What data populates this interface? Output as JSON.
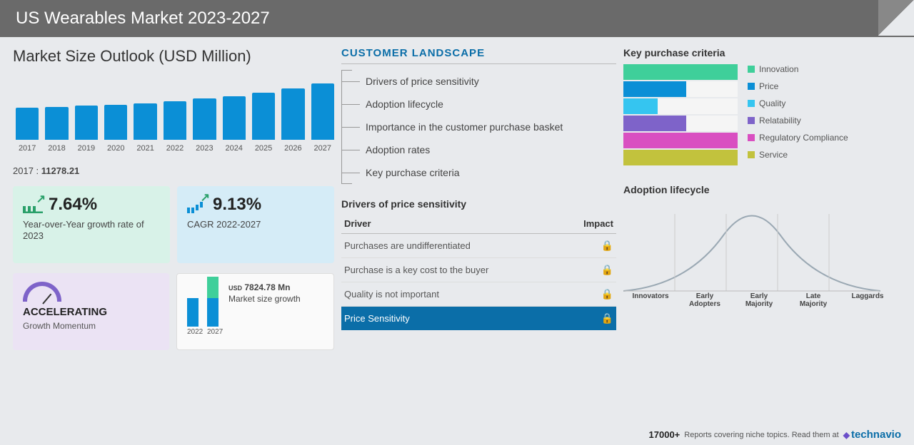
{
  "header": {
    "title": "US Wearables Market 2023-2027"
  },
  "left": {
    "market_title": "Market Size Outlook (USD Million)",
    "bar_chart": {
      "years": [
        "2017",
        "2018",
        "2019",
        "2020",
        "2021",
        "2022",
        "2023",
        "2024",
        "2025",
        "2026",
        "2027"
      ],
      "heights_pct": [
        50,
        51,
        53,
        55,
        57,
        60,
        64,
        68,
        73,
        80,
        88
      ],
      "bar_color": "#0b8fd6"
    },
    "base_year": "2017 :",
    "base_value": "11278.21",
    "kpi_yoy": {
      "value": "7.64%",
      "label": "Year-over-Year growth rate of 2023",
      "bg": "#d8f2e8"
    },
    "kpi_cagr": {
      "value": "9.13%",
      "label": "CAGR 2022-2027",
      "bg": "#d5ecf7"
    },
    "kpi_acc": {
      "title": "ACCELERATING",
      "sub": "Growth Momentum",
      "bg": "#ebe3f4"
    },
    "kpi_msg": {
      "years": [
        "2022",
        "2027"
      ],
      "usd_lbl": "USD",
      "value": "7824.78 Mn",
      "text": "Market size growth",
      "bar1_color": "#0b8fd6",
      "bar2a_color": "#0b8fd6",
      "bar2b_color": "#3fcf9a"
    }
  },
  "mid": {
    "title": "CUSTOMER  LANDSCAPE",
    "bracket_items": [
      "Drivers of price sensitivity",
      "Adoption lifecycle",
      "Importance in the customer purchase basket",
      "Adoption rates",
      "Key purchase criteria"
    ],
    "drivers_title": "Drivers of price sensitivity",
    "drivers_head": [
      "Driver",
      "Impact"
    ],
    "drivers": [
      {
        "label": "Purchases are undifferentiated",
        "hl": false
      },
      {
        "label": "Purchase is a key cost to the buyer",
        "hl": false
      },
      {
        "label": "Quality is not important",
        "hl": false
      },
      {
        "label": "Price Sensitivity",
        "hl": true
      }
    ]
  },
  "right": {
    "kpc_title": "Key purchase criteria",
    "kpc": [
      {
        "label": "Innovation",
        "pct": 100,
        "color": "#3fcf9a"
      },
      {
        "label": "Price",
        "pct": 55,
        "color": "#0b8fd6"
      },
      {
        "label": "Quality",
        "pct": 30,
        "color": "#35c5f0"
      },
      {
        "label": "Relatability",
        "pct": 55,
        "color": "#7e63c9"
      },
      {
        "label": "Regulatory Compliance",
        "pct": 100,
        "color": "#d94fc1"
      },
      {
        "label": "Service",
        "pct": 100,
        "color": "#c2c23d"
      }
    ],
    "adopt_title": "Adoption lifecycle",
    "adopt_labels": [
      "Innovators",
      "Early Adopters",
      "Early Majority",
      "Late Majority",
      "Laggards"
    ],
    "bell_color": "#9aa8b3"
  },
  "footer": {
    "count": "17000+",
    "text": "Reports covering niche topics. Read them at",
    "brand": "technavio"
  }
}
